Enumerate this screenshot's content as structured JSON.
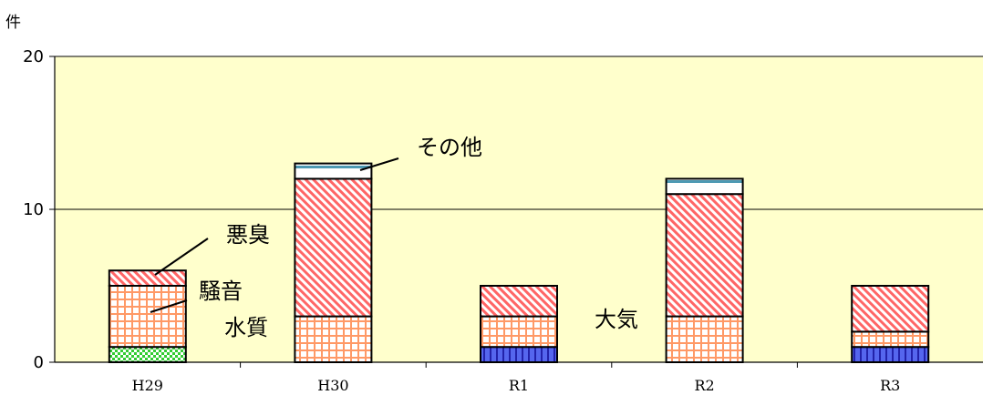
{
  "chart_data": {
    "type": "bar",
    "stacked": true,
    "y_unit": "件",
    "ylim": [
      0,
      20
    ],
    "yticks": [
      0,
      10,
      20
    ],
    "grid": true,
    "categories": [
      "H29",
      "H30",
      "R1",
      "R2",
      "R3"
    ],
    "series": [
      {
        "name": "大気",
        "values": [
          0,
          0,
          1,
          0,
          1
        ],
        "color": "#5566ee",
        "pattern": "vertical-stripes"
      },
      {
        "name": "水質",
        "values": [
          1,
          0,
          0,
          0,
          0
        ],
        "color": "#33cc33",
        "pattern": "check"
      },
      {
        "name": "騒音",
        "values": [
          4,
          3,
          2,
          3,
          1
        ],
        "color": "#ff9966",
        "pattern": "grid"
      },
      {
        "name": "悪臭",
        "values": [
          1,
          9,
          2,
          8,
          3
        ],
        "color": "#ff6666",
        "pattern": "diagonal"
      },
      {
        "name": "その他",
        "values": [
          0,
          1,
          0,
          1,
          0
        ],
        "color": "#4d99b3",
        "pattern": "horizontal-band"
      }
    ],
    "colors": {
      "plot_background": "#ffffcc",
      "axis": "#000000"
    }
  }
}
